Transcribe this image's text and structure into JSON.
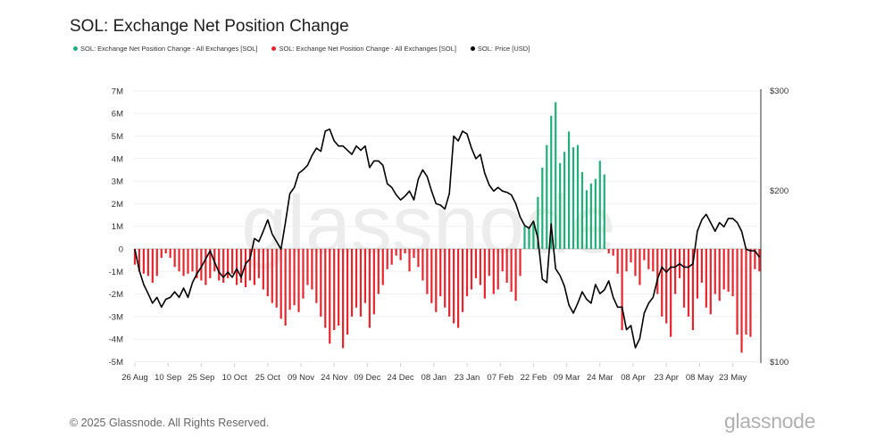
{
  "title": "SOL: Exchange Net Position Change",
  "legend": [
    {
      "label": "SOL: Exchange Net Position Change - All Exchanges [SOL]",
      "color": "#1fb07a"
    },
    {
      "label": "SOL: Exchange Net Position Change - All Exchanges [SOL]",
      "color": "#e8242c"
    },
    {
      "label": "SOL: Price [USD]",
      "color": "#000000"
    }
  ],
  "watermark": "glassnode",
  "footer": "© 2025 Glassnode. All Rights Reserved.",
  "logo": "glassnode",
  "chart_data": {
    "type": "bar+line",
    "title": "SOL: Exchange Net Position Change",
    "grid": true,
    "legend_position": "top-left",
    "x_tick_labels": [
      "26 Aug",
      "10 Sep",
      "25 Sep",
      "10 Oct",
      "25 Oct",
      "09 Nov",
      "24 Nov",
      "09 Dec",
      "24 Dec",
      "08 Jan",
      "23 Jan",
      "07 Feb",
      "22 Feb",
      "09 Mar",
      "24 Mar",
      "08 Apr",
      "23 Apr",
      "08 May",
      "23 May"
    ],
    "y_left": {
      "ticks": [
        "7M",
        "6M",
        "5M",
        "4M",
        "3M",
        "2M",
        "1M",
        "0",
        "-1M",
        "-2M",
        "-3M",
        "-4M",
        "-5M"
      ],
      "range": [
        -5000000,
        7000000
      ]
    },
    "y_right": {
      "ticks": [
        "$300",
        "$200",
        "$100"
      ],
      "range": [
        100,
        300
      ],
      "scale": "log"
    },
    "dates": [
      "2024-08-26",
      "2024-08-28",
      "2024-08-30",
      "2024-09-01",
      "2024-09-03",
      "2024-09-05",
      "2024-09-07",
      "2024-09-09",
      "2024-09-11",
      "2024-09-13",
      "2024-09-15",
      "2024-09-17",
      "2024-09-19",
      "2024-09-21",
      "2024-09-23",
      "2024-09-25",
      "2024-09-27",
      "2024-09-29",
      "2024-10-01",
      "2024-10-03",
      "2024-10-05",
      "2024-10-07",
      "2024-10-09",
      "2024-10-11",
      "2024-10-13",
      "2024-10-15",
      "2024-10-17",
      "2024-10-19",
      "2024-10-21",
      "2024-10-23",
      "2024-10-25",
      "2024-10-27",
      "2024-10-29",
      "2024-10-31",
      "2024-11-02",
      "2024-11-04",
      "2024-11-06",
      "2024-11-08",
      "2024-11-10",
      "2024-11-12",
      "2024-11-14",
      "2024-11-16",
      "2024-11-18",
      "2024-11-20",
      "2024-11-22",
      "2024-11-24",
      "2024-11-26",
      "2024-11-28",
      "2024-11-30",
      "2024-12-02",
      "2024-12-04",
      "2024-12-06",
      "2024-12-08",
      "2024-12-10",
      "2024-12-12",
      "2024-12-14",
      "2024-12-16",
      "2024-12-18",
      "2024-12-20",
      "2024-12-22",
      "2024-12-24",
      "2024-12-26",
      "2024-12-28",
      "2024-12-30",
      "2025-01-01",
      "2025-01-03",
      "2025-01-05",
      "2025-01-07",
      "2025-01-09",
      "2025-01-11",
      "2025-01-13",
      "2025-01-15",
      "2025-01-17",
      "2025-01-19",
      "2025-01-21",
      "2025-01-23",
      "2025-01-25",
      "2025-01-27",
      "2025-01-29",
      "2025-01-31",
      "2025-02-02",
      "2025-02-04",
      "2025-02-06",
      "2025-02-08",
      "2025-02-10",
      "2025-02-12",
      "2025-02-14",
      "2025-02-16",
      "2025-02-18",
      "2025-02-20",
      "2025-02-22",
      "2025-02-24",
      "2025-02-26",
      "2025-02-28",
      "2025-03-02",
      "2025-03-04",
      "2025-03-06",
      "2025-03-08",
      "2025-03-10",
      "2025-03-12",
      "2025-03-14",
      "2025-03-16",
      "2025-03-18",
      "2025-03-20",
      "2025-03-22",
      "2025-03-24",
      "2025-03-26",
      "2025-03-28",
      "2025-03-30",
      "2025-04-01",
      "2025-04-03",
      "2025-04-05",
      "2025-04-07",
      "2025-04-09",
      "2025-04-11",
      "2025-04-13",
      "2025-04-15",
      "2025-04-17",
      "2025-04-19",
      "2025-04-21",
      "2025-04-23",
      "2025-04-25",
      "2025-04-27",
      "2025-04-29",
      "2025-05-01",
      "2025-05-03",
      "2025-05-05",
      "2025-05-07",
      "2025-05-09",
      "2025-05-11",
      "2025-05-13",
      "2025-05-15",
      "2025-05-17",
      "2025-05-19",
      "2025-05-21",
      "2025-05-23",
      "2025-05-25",
      "2025-05-27",
      "2025-05-29",
      "2025-05-31",
      "2025-06-02",
      "2025-06-04"
    ],
    "series": [
      {
        "name": "SOL: Exchange Net Position Change - All Exchanges [SOL]",
        "type": "bar",
        "unit": "SOL (millions)",
        "values": [
          -0.7,
          -1.0,
          -1.1,
          -1.2,
          -1.5,
          -1.2,
          -0.4,
          -0.2,
          -0.4,
          -0.8,
          -1.0,
          -1.2,
          -1.1,
          -1.0,
          -1.3,
          -1.4,
          -1.6,
          -1.3,
          -1.0,
          -1.4,
          -1.5,
          -1.3,
          -1.1,
          -1.6,
          -1.5,
          -1.7,
          -1.4,
          -1.6,
          -1.3,
          -1.8,
          -2.1,
          -2.4,
          -2.6,
          -3.1,
          -3.4,
          -2.7,
          -2.5,
          -2.8,
          -2.2,
          -1.6,
          -1.8,
          -2.4,
          -3.0,
          -3.5,
          -4.2,
          -3.6,
          -3.4,
          -4.4,
          -3.8,
          -3.0,
          -2.6,
          -3.0,
          -2.4,
          -3.5,
          -2.9,
          -2.0,
          -1.6,
          -0.9,
          -0.7,
          -0.3,
          -0.5,
          -0.2,
          -1.0,
          -0.4,
          -0.8,
          -1.4,
          -2.0,
          -2.4,
          -2.8,
          -2.1,
          -2.6,
          -3.0,
          -3.3,
          -3.5,
          -2.8,
          -2.1,
          -1.8,
          -1.3,
          -1.6,
          -2.2,
          -1.2,
          -2.0,
          -1.8,
          -1.0,
          -1.5,
          -1.9,
          -2.3,
          -1.2,
          1.0,
          0.9,
          1.1,
          2.3,
          3.6,
          4.6,
          5.9,
          6.5,
          3.8,
          4.3,
          5.2,
          4.5,
          4.6,
          3.4,
          2.6,
          2.9,
          3.1,
          3.9,
          3.3,
          -0.2,
          -0.3,
          -1.1,
          -3.6,
          -1.0,
          -0.6,
          -1.2,
          -1.6,
          -0.5,
          -0.9,
          -1.0,
          -2.0,
          -3.0,
          -3.3,
          -3.9,
          -2.0,
          -1.3,
          -2.6,
          -3.0,
          -3.6,
          -2.2,
          -1.5,
          -2.6,
          -2.9,
          -2.0,
          -2.3,
          -1.8,
          -1.9,
          -2.1,
          -3.8,
          -4.6,
          -3.8,
          -3.9,
          -0.9,
          -1.0
        ]
      },
      {
        "name": "SOL: Price [USD]",
        "type": "line",
        "values": [
          158,
          145,
          137,
          132,
          127,
          130,
          125,
          129,
          130,
          133,
          130,
          135,
          130,
          138,
          143,
          147,
          152,
          157,
          150,
          144,
          141,
          144,
          141,
          146,
          141,
          149,
          152,
          165,
          163,
          170,
          178,
          168,
          163,
          158,
          176,
          198,
          203,
          215,
          218,
          222,
          231,
          238,
          235,
          255,
          257,
          245,
          240,
          240,
          236,
          232,
          240,
          236,
          240,
          220,
          226,
          226,
          222,
          206,
          203,
          197,
          193,
          196,
          200,
          193,
          210,
          218,
          212,
          200,
          190,
          189,
          186,
          198,
          250,
          245,
          255,
          252,
          238,
          228,
          232,
          215,
          205,
          200,
          203,
          200,
          199,
          197,
          190,
          180,
          174,
          172,
          177,
          165,
          140,
          138,
          175,
          146,
          142,
          136,
          126,
          122,
          127,
          133,
          129,
          127,
          137,
          132,
          134,
          139,
          130,
          125,
          125,
          114,
          116,
          106,
          110,
          122,
          127,
          130,
          140,
          147,
          144,
          147,
          147,
          149,
          147,
          147,
          149,
          170,
          178,
          182,
          176,
          170,
          176,
          173,
          179,
          179,
          176,
          170,
          158,
          157,
          157,
          153
        ]
      }
    ],
    "colors": {
      "positive": "#1fb07a",
      "negative": "#e8242c",
      "price": "#000000"
    }
  }
}
